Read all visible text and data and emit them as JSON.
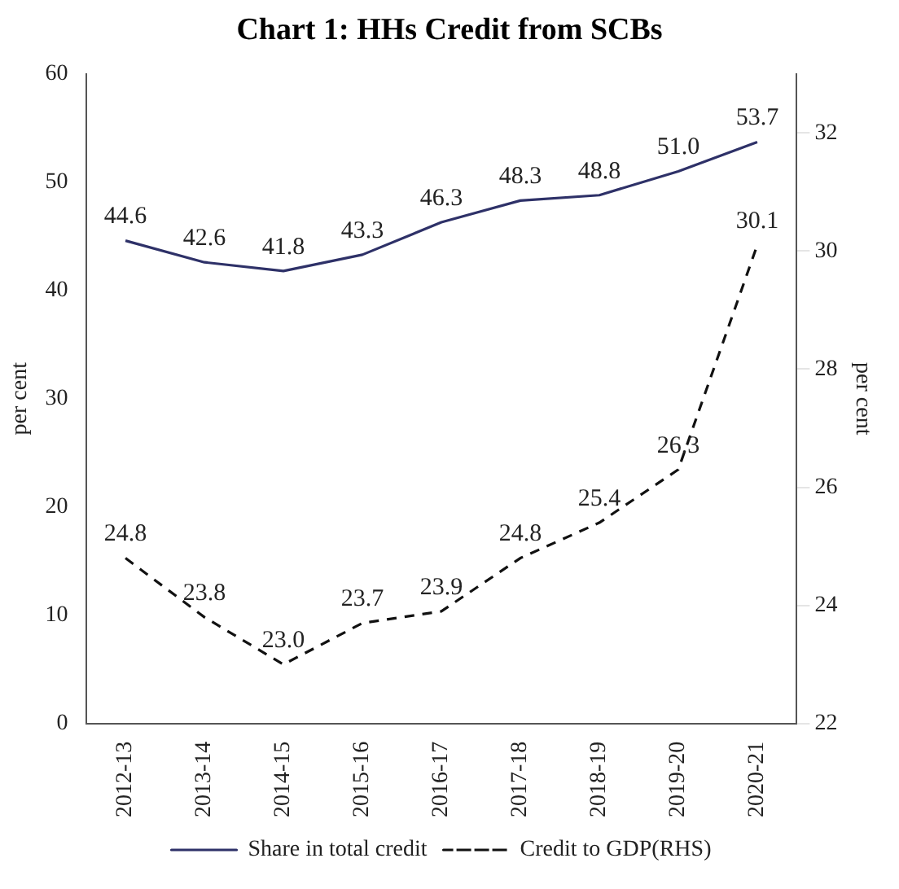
{
  "chart_data": {
    "type": "line",
    "title": "Chart 1: HHs Credit from SCBs",
    "categories": [
      "2012-13",
      "2013-14",
      "2014-15",
      "2015-16",
      "2016-17",
      "2017-18",
      "2018-19",
      "2019-20",
      "2020-21"
    ],
    "series": [
      {
        "name": "Share in total credit",
        "color": "#2e3168",
        "line_style": "solid",
        "values": [
          44.6,
          42.6,
          41.8,
          43.3,
          46.3,
          48.3,
          48.8,
          51.0,
          53.7
        ],
        "value_labels": [
          "44.6",
          "42.6",
          "41.8",
          "43.3",
          "46.3",
          "48.3",
          "48.8",
          "51.0",
          "53.7"
        ]
      },
      {
        "name": "Credit to GDP(RHS)",
        "color": "#111111",
        "line_style": "dashed",
        "axis": "y2",
        "values": [
          24.8,
          23.8,
          23.0,
          23.7,
          23.9,
          24.8,
          25.4,
          26.3,
          30.1
        ],
        "value_labels": [
          "24.8",
          "23.8",
          "23.0",
          "23.7",
          "23.9",
          "24.8",
          "25.4",
          "26.3",
          "30.1"
        ]
      }
    ],
    "ylabel": "per cent",
    "y2label": "per cent",
    "ylim": [
      0,
      60
    ],
    "yticks": [
      0,
      10,
      20,
      30,
      40,
      50,
      60
    ],
    "y2lim": [
      22,
      33
    ],
    "y2ticks": [
      22,
      24,
      26,
      28,
      30,
      32
    ],
    "grid": false,
    "legend": "bottom"
  }
}
